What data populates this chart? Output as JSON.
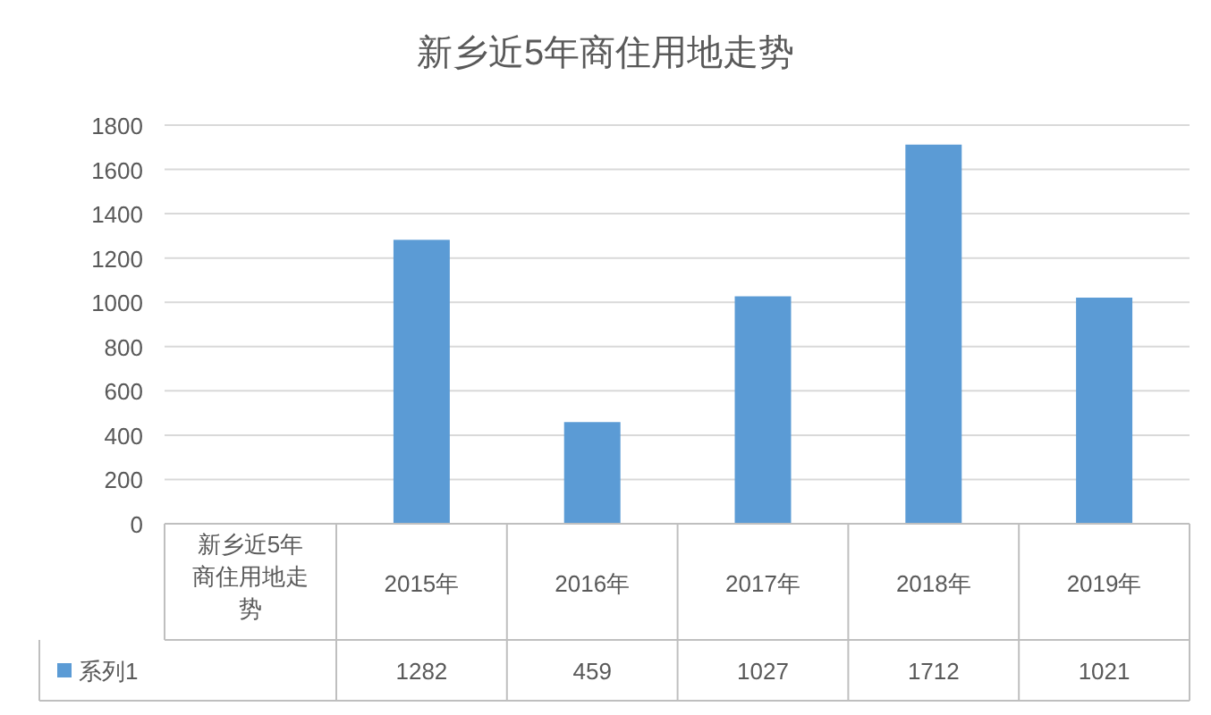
{
  "chart_data": {
    "type": "bar",
    "title": "新乡近5年商住用地走势",
    "categories": [
      "2015年",
      "2016年",
      "2017年",
      "2018年",
      "2019年"
    ],
    "series": [
      {
        "name": "系列1",
        "color": "#5b9bd5",
        "values": [
          1282,
          459,
          1027,
          1712,
          1021
        ]
      }
    ],
    "ylim": [
      0,
      1800
    ],
    "yticks": [
      0,
      200,
      400,
      600,
      800,
      1000,
      1200,
      1400,
      1600,
      1800
    ],
    "grid": "y",
    "legend": "bottom",
    "data_labels": true,
    "annotations": [
      "新乡近5年商住用地走势"
    ]
  }
}
